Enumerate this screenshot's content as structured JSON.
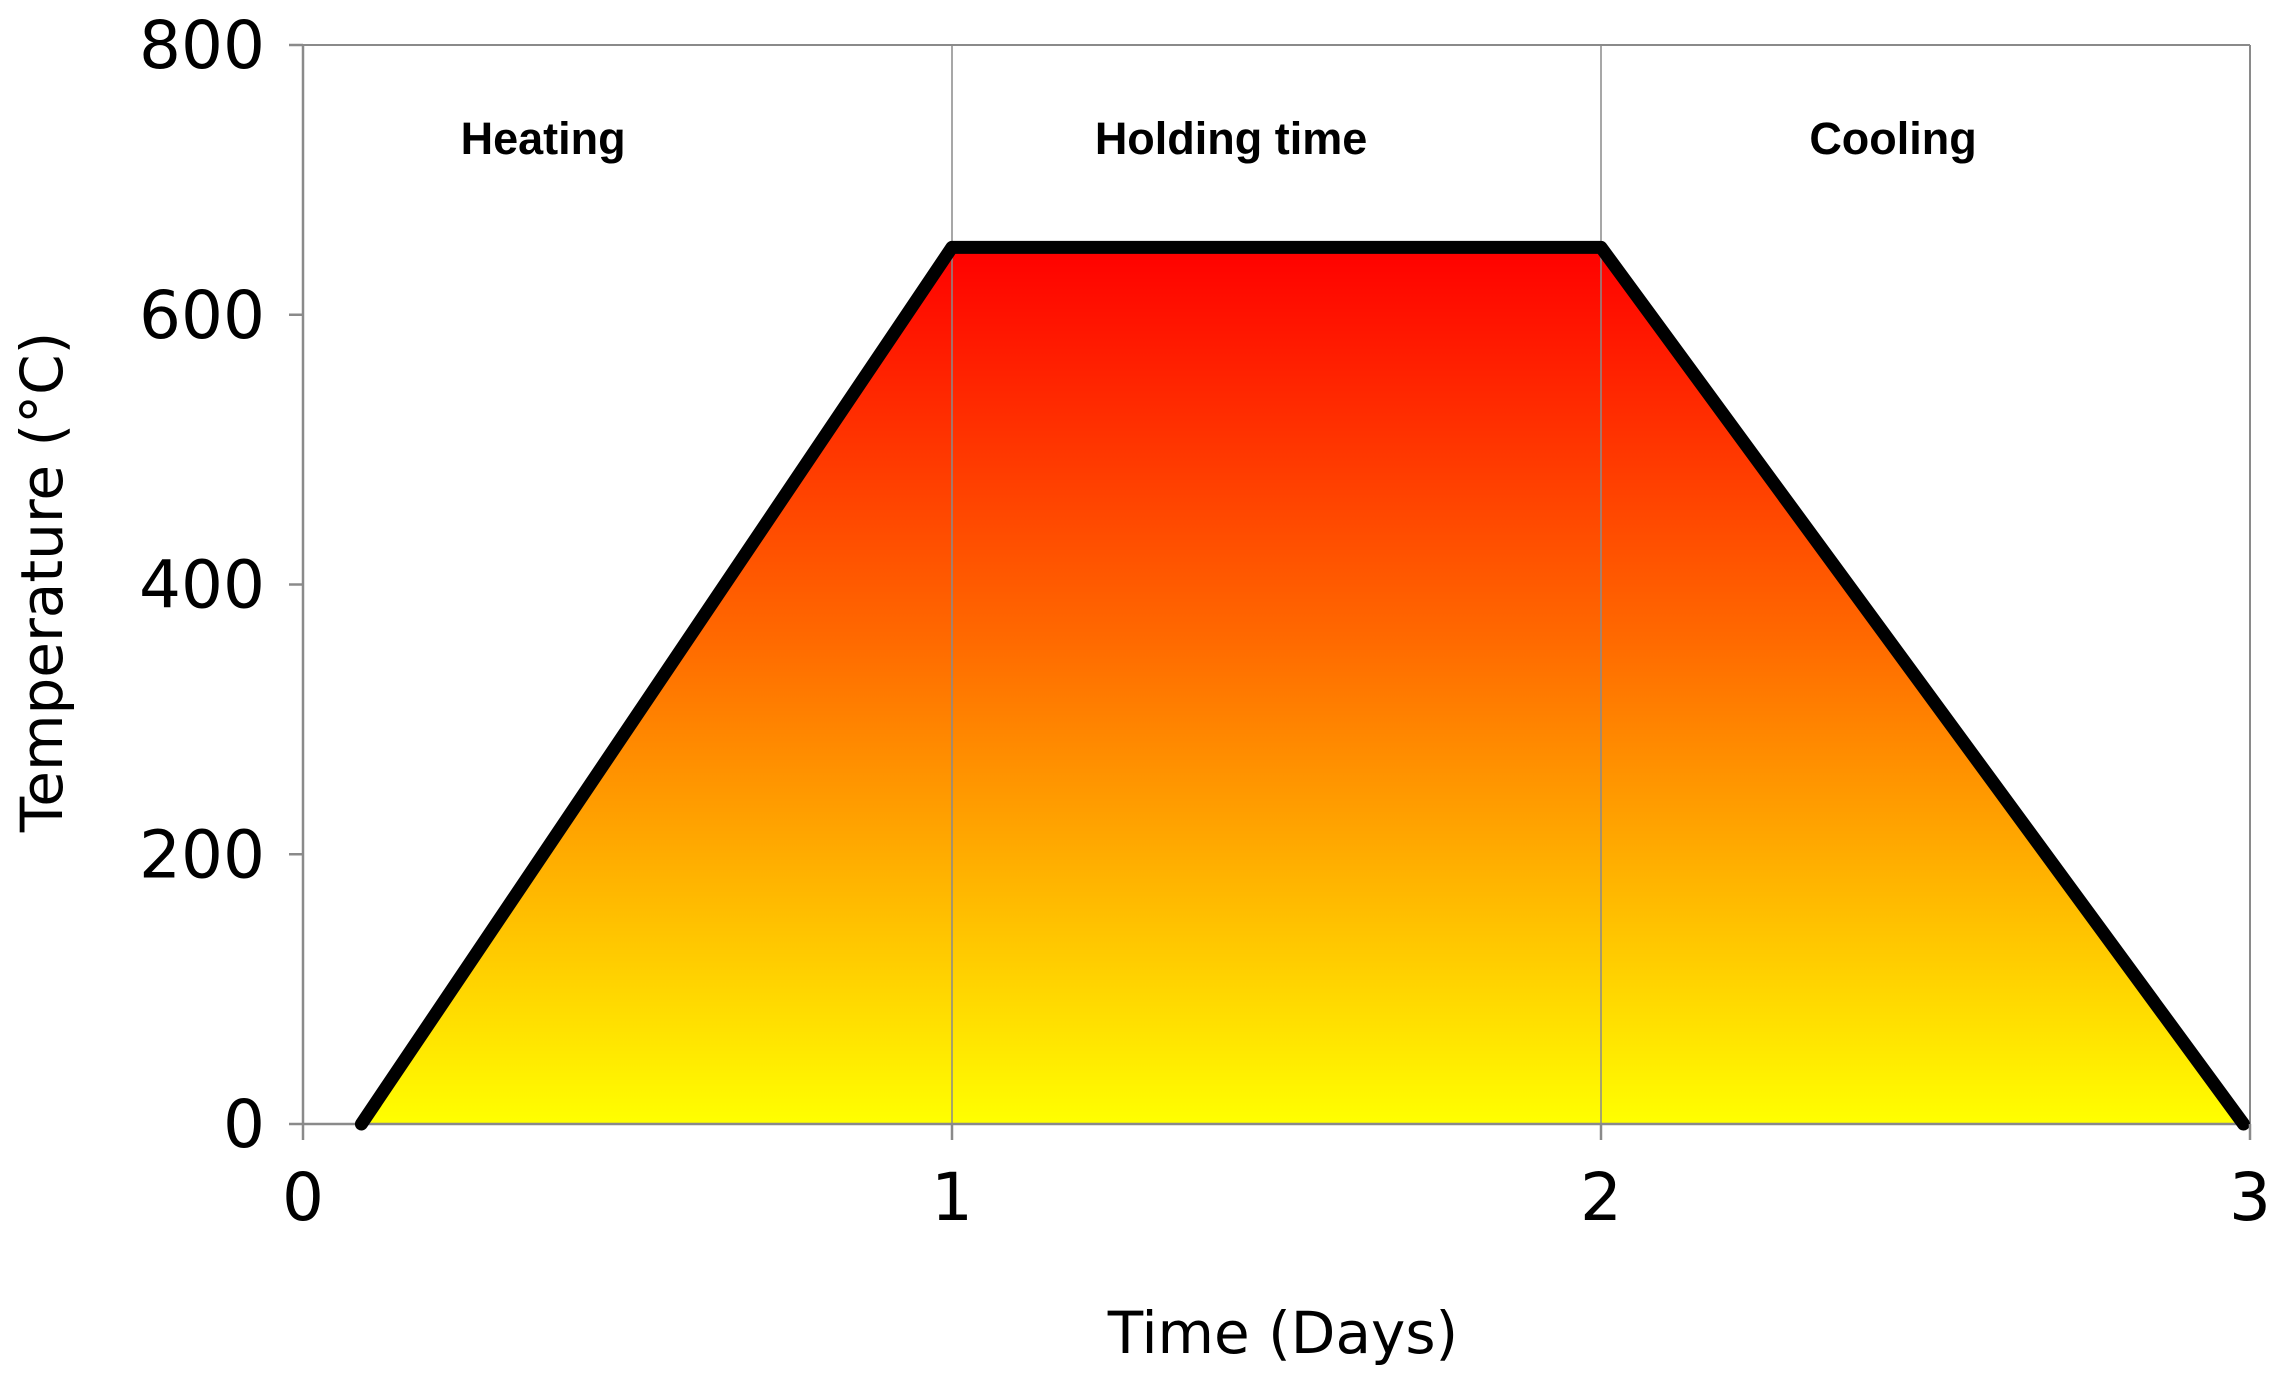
{
  "chart_data": {
    "type": "area",
    "title": "",
    "xlabel": "Time (Days)",
    "ylabel": "Temperature (°C)",
    "xlim": [
      0,
      3
    ],
    "ylim": [
      0,
      800
    ],
    "x_ticks": [
      "0",
      "1",
      "2",
      "3"
    ],
    "y_ticks": [
      "0",
      "200",
      "400",
      "600",
      "800"
    ],
    "grid": false,
    "series": [
      {
        "x": [
          0.09,
          1.0,
          2.0,
          2.99
        ],
        "y": [
          0,
          650,
          650,
          0
        ]
      }
    ],
    "phase_dividers_x": [
      1,
      2
    ],
    "phases": [
      {
        "label": "Heating",
        "x_center": 0.37
      },
      {
        "label": "Holding time",
        "x_center": 1.43
      },
      {
        "label": "Cooling",
        "x_center": 2.45
      }
    ],
    "fill_gradient": {
      "top": "#ff0000",
      "bottom": "#ffff00"
    },
    "line_color": "#000000"
  }
}
